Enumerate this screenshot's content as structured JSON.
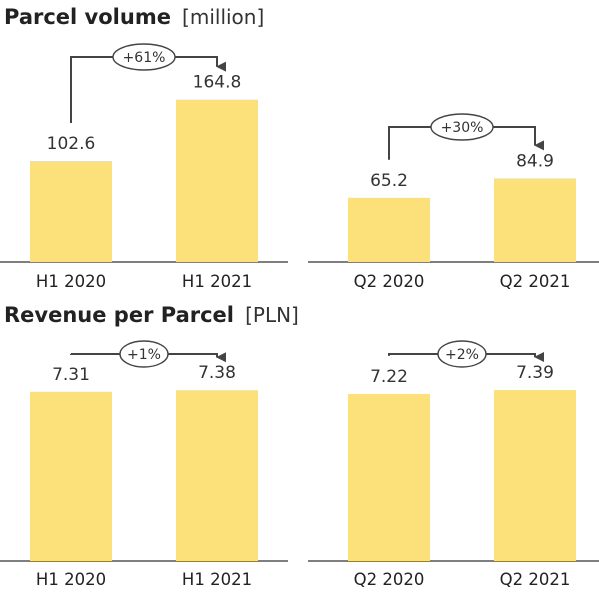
{
  "chart_data": [
    {
      "type": "bar",
      "title": "Parcel volume",
      "unit": "[million]",
      "categories": [
        "H1 2020",
        "H1 2021",
        "Q2 2020",
        "Q2 2021"
      ],
      "values": [
        102.6,
        164.8,
        65.2,
        84.9
      ],
      "value_labels": [
        "102.6",
        "164.8",
        "65.2",
        "84.9"
      ],
      "ylim": [
        0,
        200
      ],
      "grid": false,
      "comparisons": [
        {
          "from": 0,
          "to": 1,
          "label": "+61%"
        },
        {
          "from": 2,
          "to": 3,
          "label": "+30%"
        }
      ]
    },
    {
      "type": "bar",
      "title": "Revenue per Parcel",
      "unit": "[PLN]",
      "categories": [
        "H1 2020",
        "H1 2021",
        "Q2 2020",
        "Q2 2021"
      ],
      "values": [
        7.31,
        7.38,
        7.22,
        7.39
      ],
      "value_labels": [
        "7.31",
        "7.38",
        "7.22",
        "7.39"
      ],
      "ylim": [
        0,
        8.6
      ],
      "grid": false,
      "comparisons": [
        {
          "from": 0,
          "to": 1,
          "label": "+1%"
        },
        {
          "from": 2,
          "to": 3,
          "label": "+2%"
        }
      ]
    }
  ],
  "colors": {
    "bar": "#FCE07A",
    "axis": "#555555",
    "connector": "#444444"
  }
}
